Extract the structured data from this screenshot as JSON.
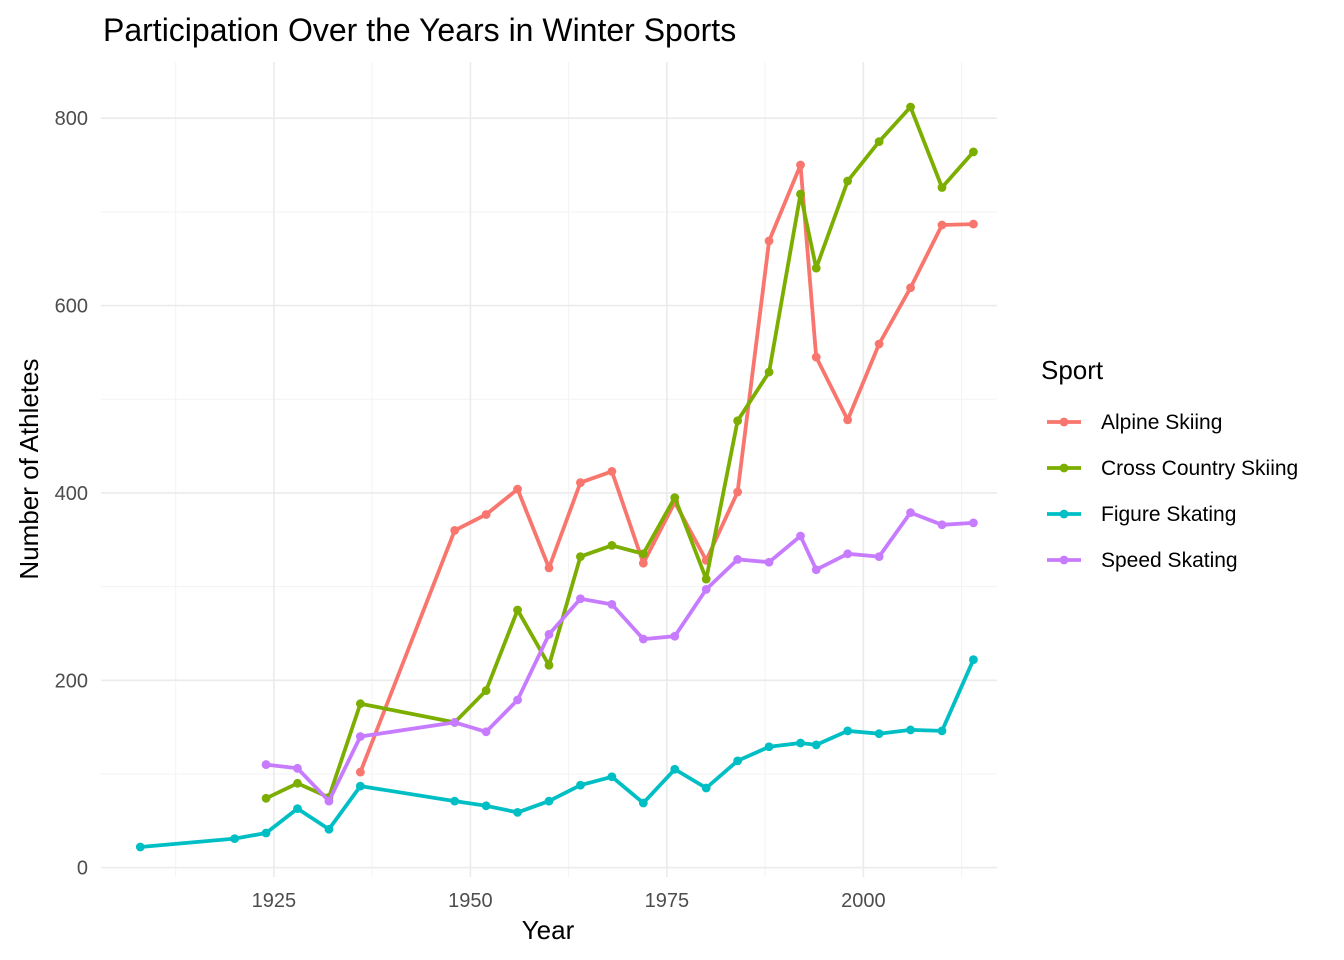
{
  "chart_data": {
    "type": "line",
    "title": "Participation Over the Years in Winter Sports",
    "xlabel": "Year",
    "ylabel": "Number of Athletes",
    "xlim": [
      1903,
      2017
    ],
    "ylim": [
      -10,
      860
    ],
    "xticks": [
      1925,
      1950,
      1975,
      2000
    ],
    "yticks": [
      0,
      200,
      400,
      600,
      800
    ],
    "grid": true,
    "legend": {
      "title": "Sport",
      "position": "right"
    },
    "series": [
      {
        "name": "Alpine Skiing",
        "color": "#F8766D",
        "x": [
          1936,
          1948,
          1952,
          1956,
          1960,
          1964,
          1968,
          1972,
          1976,
          1980,
          1984,
          1988,
          1992,
          1994,
          1998,
          2002,
          2006,
          2010,
          2014
        ],
        "y": [
          102,
          360,
          377,
          404,
          320,
          411,
          423,
          325,
          390,
          328,
          401,
          669,
          750,
          545,
          478,
          559,
          619,
          686,
          687
        ]
      },
      {
        "name": "Cross Country Skiing",
        "color": "#7CAE00",
        "x": [
          1924,
          1928,
          1932,
          1936,
          1948,
          1952,
          1956,
          1960,
          1964,
          1968,
          1972,
          1976,
          1980,
          1984,
          1988,
          1992,
          1994,
          1998,
          2002,
          2006,
          2010,
          2014
        ],
        "y": [
          74,
          90,
          75,
          175,
          155,
          189,
          275,
          216,
          332,
          344,
          335,
          395,
          308,
          477,
          529,
          719,
          640,
          733,
          775,
          812,
          726,
          764
        ]
      },
      {
        "name": "Figure Skating",
        "color": "#00BFC4",
        "x": [
          1908,
          1920,
          1924,
          1928,
          1932,
          1936,
          1948,
          1952,
          1956,
          1960,
          1964,
          1968,
          1972,
          1976,
          1980,
          1984,
          1988,
          1992,
          1994,
          1998,
          2002,
          2006,
          2010,
          2014
        ],
        "y": [
          22,
          31,
          37,
          63,
          41,
          87,
          71,
          66,
          59,
          71,
          88,
          97,
          69,
          105,
          85,
          114,
          129,
          133,
          131,
          146,
          143,
          147,
          146,
          222
        ]
      },
      {
        "name": "Speed Skating",
        "color": "#C77CFF",
        "x": [
          1924,
          1928,
          1932,
          1936,
          1948,
          1952,
          1956,
          1960,
          1964,
          1968,
          1972,
          1976,
          1980,
          1984,
          1988,
          1992,
          1994,
          1998,
          2002,
          2006,
          2010,
          2014
        ],
        "y": [
          110,
          106,
          71,
          140,
          155,
          145,
          179,
          249,
          287,
          281,
          244,
          247,
          297,
          329,
          326,
          354,
          318,
          335,
          332,
          379,
          366,
          368
        ]
      }
    ]
  }
}
